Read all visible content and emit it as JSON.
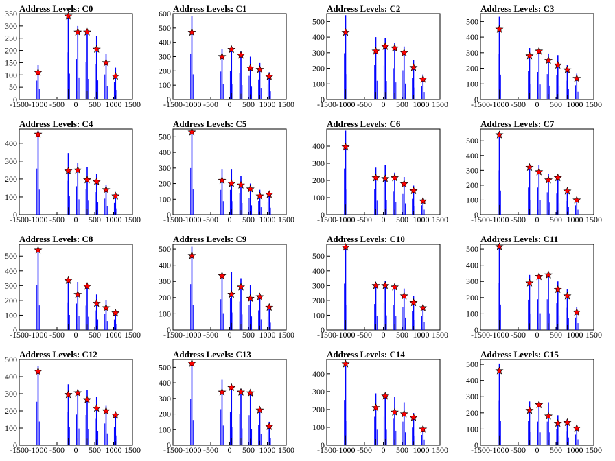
{
  "chart_data": [
    {
      "type": "bar",
      "title": "Address Levels: C0",
      "xlim": [
        -1500,
        1500
      ],
      "ylim": [
        0,
        350
      ],
      "yticks": [
        0,
        50,
        100,
        150,
        200,
        250,
        300,
        350
      ],
      "xticks": [
        -1500,
        -1000,
        -500,
        0,
        500,
        1000,
        1500
      ],
      "x": [
        -1000,
        -200,
        50,
        300,
        550,
        800,
        1050
      ],
      "values": [
        110,
        340,
        275,
        275,
        205,
        150,
        95
      ],
      "peaks": [
        140,
        350,
        300,
        280,
        260,
        185,
        130
      ],
      "line_color": "#0000ff",
      "marker_color": "#ff0000"
    },
    {
      "type": "bar",
      "title": "Address Levels: C1",
      "xlim": [
        -1500,
        1500
      ],
      "ylim": [
        0,
        600
      ],
      "yticks": [
        0,
        100,
        200,
        300,
        400,
        500,
        600
      ],
      "xticks": [
        -1500,
        -1000,
        -500,
        0,
        500,
        1000,
        1500
      ],
      "x": [
        -1000,
        -200,
        50,
        300,
        550,
        800,
        1050
      ],
      "values": [
        470,
        300,
        350,
        310,
        220,
        210,
        160
      ],
      "peaks": [
        585,
        355,
        360,
        335,
        300,
        255,
        190
      ],
      "line_color": "#0000ff",
      "marker_color": "#ff0000"
    },
    {
      "type": "bar",
      "title": "Address Levels: C2",
      "xlim": [
        -1500,
        1500
      ],
      "ylim": [
        0,
        550
      ],
      "yticks": [
        0,
        100,
        200,
        300,
        400,
        500
      ],
      "xticks": [
        -1500,
        -1000,
        -500,
        0,
        500,
        1000,
        1500
      ],
      "x": [
        -1000,
        -200,
        50,
        300,
        550,
        800,
        1050
      ],
      "values": [
        430,
        310,
        340,
        330,
        300,
        205,
        130
      ],
      "peaks": [
        540,
        400,
        395,
        365,
        340,
        255,
        160
      ],
      "line_color": "#0000ff",
      "marker_color": "#ff0000"
    },
    {
      "type": "bar",
      "title": "Address Levels: C3",
      "xlim": [
        -1500,
        1500
      ],
      "ylim": [
        0,
        550
      ],
      "yticks": [
        0,
        100,
        200,
        300,
        400,
        500
      ],
      "xticks": [
        -1500,
        -1000,
        -500,
        0,
        500,
        1000,
        1500
      ],
      "x": [
        -1000,
        -200,
        50,
        300,
        550,
        800,
        1050
      ],
      "values": [
        450,
        280,
        310,
        250,
        220,
        190,
        135
      ],
      "peaks": [
        530,
        330,
        320,
        295,
        285,
        220,
        165
      ],
      "line_color": "#0000ff",
      "marker_color": "#ff0000"
    },
    {
      "type": "bar",
      "title": "Address Levels: C4",
      "xlim": [
        -1500,
        1500
      ],
      "ylim": [
        0,
        480
      ],
      "yticks": [
        0,
        100,
        200,
        300,
        400
      ],
      "xticks": [
        -1500,
        -1000,
        -500,
        0,
        500,
        1000,
        1500
      ],
      "x": [
        -1000,
        -200,
        50,
        300,
        550,
        800,
        1050
      ],
      "values": [
        450,
        245,
        250,
        195,
        185,
        140,
        105
      ],
      "peaks": [
        470,
        345,
        290,
        265,
        230,
        165,
        120
      ],
      "line_color": "#0000ff",
      "marker_color": "#ff0000"
    },
    {
      "type": "bar",
      "title": "Address Levels: C5",
      "xlim": [
        -1500,
        1500
      ],
      "ylim": [
        0,
        550
      ],
      "yticks": [
        0,
        100,
        200,
        300,
        400,
        500
      ],
      "xticks": [
        -1500,
        -1000,
        -500,
        0,
        500,
        1000,
        1500
      ],
      "x": [
        -1000,
        -200,
        50,
        300,
        550,
        800,
        1050
      ],
      "values": [
        530,
        220,
        200,
        190,
        165,
        120,
        130
      ],
      "peaks": [
        545,
        290,
        290,
        250,
        200,
        160,
        150
      ],
      "line_color": "#0000ff",
      "marker_color": "#ff0000"
    },
    {
      "type": "bar",
      "title": "Address Levels: C6",
      "xlim": [
        -1500,
        1500
      ],
      "ylim": [
        0,
        500
      ],
      "yticks": [
        0,
        100,
        200,
        300,
        400
      ],
      "xticks": [
        -1500,
        -1000,
        -500,
        0,
        500,
        1000,
        1500
      ],
      "x": [
        -1000,
        -200,
        50,
        300,
        550,
        800,
        1050
      ],
      "values": [
        395,
        215,
        210,
        215,
        180,
        140,
        80
      ],
      "peaks": [
        490,
        275,
        290,
        245,
        220,
        170,
        100
      ],
      "line_color": "#0000ff",
      "marker_color": "#ff0000"
    },
    {
      "type": "bar",
      "title": "Address Levels: C7",
      "xlim": [
        -1500,
        1500
      ],
      "ylim": [
        0,
        580
      ],
      "yticks": [
        0,
        100,
        200,
        300,
        400,
        500
      ],
      "xticks": [
        -1500,
        -1000,
        -500,
        0,
        500,
        1000,
        1500
      ],
      "x": [
        -1000,
        -200,
        50,
        300,
        550,
        800,
        1050
      ],
      "values": [
        540,
        320,
        290,
        235,
        250,
        160,
        100
      ],
      "peaks": [
        545,
        335,
        335,
        275,
        260,
        170,
        115
      ],
      "line_color": "#0000ff",
      "marker_color": "#ff0000"
    },
    {
      "type": "bar",
      "title": "Address Levels: C8",
      "xlim": [
        -1500,
        1500
      ],
      "ylim": [
        0,
        580
      ],
      "yticks": [
        0,
        100,
        200,
        300,
        400,
        500
      ],
      "xticks": [
        -1500,
        -1000,
        -500,
        0,
        500,
        1000,
        1500
      ],
      "x": [
        -1000,
        -200,
        50,
        300,
        550,
        800,
        1050
      ],
      "values": [
        540,
        335,
        240,
        295,
        180,
        150,
        115
      ],
      "peaks": [
        555,
        340,
        325,
        300,
        240,
        200,
        130
      ],
      "line_color": "#0000ff",
      "marker_color": "#ff0000"
    },
    {
      "type": "bar",
      "title": "Address Levels: C9",
      "xlim": [
        -1500,
        1500
      ],
      "ylim": [
        0,
        530
      ],
      "yticks": [
        0,
        100,
        200,
        300,
        400,
        500
      ],
      "xticks": [
        -1500,
        -1000,
        -500,
        0,
        500,
        1000,
        1500
      ],
      "x": [
        -1000,
        -200,
        50,
        300,
        550,
        800,
        1050
      ],
      "values": [
        460,
        335,
        220,
        265,
        195,
        205,
        140
      ],
      "peaks": [
        515,
        345,
        360,
        320,
        280,
        220,
        150
      ],
      "line_color": "#0000ff",
      "marker_color": "#ff0000"
    },
    {
      "type": "bar",
      "title": "Address Levels: C10",
      "xlim": [
        -1500,
        1500
      ],
      "ylim": [
        0,
        580
      ],
      "yticks": [
        0,
        100,
        200,
        300,
        400,
        500
      ],
      "xticks": [
        -1500,
        -1000,
        -500,
        0,
        500,
        1000,
        1500
      ],
      "x": [
        -1000,
        -200,
        50,
        300,
        550,
        800,
        1050
      ],
      "values": [
        560,
        300,
        300,
        290,
        230,
        185,
        150
      ],
      "peaks": [
        570,
        320,
        330,
        310,
        280,
        230,
        170
      ],
      "line_color": "#0000ff",
      "marker_color": "#ff0000"
    },
    {
      "type": "bar",
      "title": "Address Levels: C11",
      "xlim": [
        -1500,
        1500
      ],
      "ylim": [
        0,
        530
      ],
      "yticks": [
        0,
        100,
        200,
        300,
        400,
        500
      ],
      "xticks": [
        -1500,
        -1000,
        -500,
        0,
        500,
        1000,
        1500
      ],
      "x": [
        -1000,
        -200,
        50,
        300,
        550,
        800,
        1050
      ],
      "values": [
        515,
        290,
        330,
        340,
        250,
        210,
        110
      ],
      "peaks": [
        525,
        340,
        345,
        345,
        300,
        250,
        140
      ],
      "line_color": "#0000ff",
      "marker_color": "#ff0000"
    },
    {
      "type": "bar",
      "title": "Address Levels: C12",
      "xlim": [
        -1500,
        1500
      ],
      "ylim": [
        0,
        500
      ],
      "yticks": [
        0,
        100,
        200,
        300,
        400,
        500
      ],
      "xticks": [
        -1500,
        -1000,
        -500,
        0,
        500,
        1000,
        1500
      ],
      "x": [
        -1000,
        -200,
        50,
        300,
        550,
        800,
        1050
      ],
      "values": [
        430,
        295,
        305,
        265,
        215,
        200,
        175
      ],
      "peaks": [
        460,
        355,
        325,
        320,
        280,
        230,
        190
      ],
      "line_color": "#0000ff",
      "marker_color": "#ff0000"
    },
    {
      "type": "bar",
      "title": "Address Levels: C13",
      "xlim": [
        -1500,
        1500
      ],
      "ylim": [
        0,
        550
      ],
      "yticks": [
        0,
        100,
        200,
        300,
        400,
        500
      ],
      "xticks": [
        -1500,
        -1000,
        -500,
        0,
        500,
        1000,
        1500
      ],
      "x": [
        -1000,
        -200,
        50,
        300,
        550,
        800,
        1050
      ],
      "values": [
        525,
        340,
        370,
        340,
        335,
        225,
        120
      ],
      "peaks": [
        540,
        420,
        390,
        360,
        350,
        235,
        150
      ],
      "line_color": "#0000ff",
      "marker_color": "#ff0000"
    },
    {
      "type": "bar",
      "title": "Address Levels: C14",
      "xlim": [
        -1500,
        1500
      ],
      "ylim": [
        0,
        480
      ],
      "yticks": [
        0,
        100,
        200,
        300,
        400
      ],
      "xticks": [
        -1500,
        -1000,
        -500,
        0,
        500,
        1000,
        1500
      ],
      "x": [
        -1000,
        -200,
        50,
        300,
        550,
        800,
        1050
      ],
      "values": [
        455,
        210,
        275,
        185,
        175,
        155,
        90
      ],
      "peaks": [
        460,
        290,
        290,
        270,
        240,
        180,
        105
      ],
      "line_color": "#0000ff",
      "marker_color": "#ff0000"
    },
    {
      "type": "bar",
      "title": "Address Levels: C15",
      "xlim": [
        -1500,
        1500
      ],
      "ylim": [
        0,
        530
      ],
      "yticks": [
        0,
        100,
        200,
        300,
        400,
        500
      ],
      "xticks": [
        -1500,
        -1000,
        -500,
        0,
        500,
        1000,
        1500
      ],
      "x": [
        -1000,
        -200,
        50,
        300,
        550,
        800,
        1050
      ],
      "values": [
        460,
        215,
        250,
        180,
        135,
        140,
        105
      ],
      "peaks": [
        505,
        270,
        265,
        265,
        185,
        160,
        120
      ],
      "line_color": "#0000ff",
      "marker_color": "#ff0000"
    }
  ]
}
